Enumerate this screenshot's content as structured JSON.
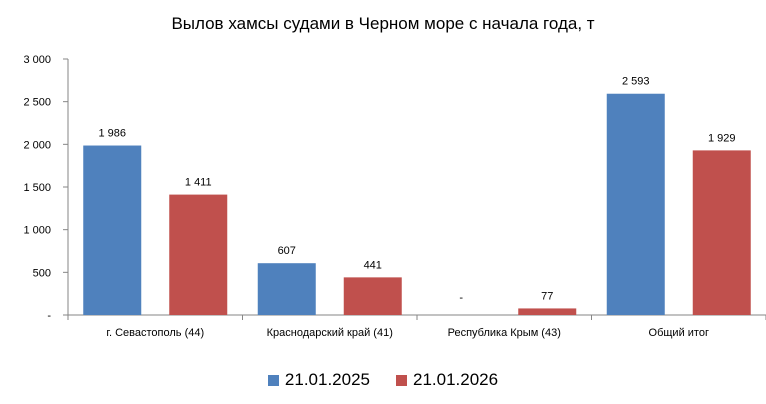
{
  "chart_data": {
    "type": "bar",
    "title": "Вылов хамсы судами в Черном море с начала  года, т",
    "categories": [
      "г. Севастополь (44)",
      "Краснодарский край (41)",
      "Республика Крым (43)",
      "Общий итог"
    ],
    "series": [
      {
        "name": "21.01.2025",
        "color": "#4F81BD",
        "values": [
          1986,
          607,
          null,
          2593
        ],
        "labels": [
          "1 986",
          "607",
          "-",
          "2 593"
        ]
      },
      {
        "name": "21.01.2026",
        "color": "#C0504D",
        "values": [
          1411,
          441,
          77,
          1929
        ],
        "labels": [
          "1 411",
          "441",
          "77",
          "1 929"
        ]
      }
    ],
    "ylim": [
      0,
      3000
    ],
    "yticks": [
      0,
      500,
      1000,
      1500,
      2000,
      2500,
      3000
    ],
    "ytick_labels": [
      "-",
      "500",
      "1 000",
      "1 500",
      "2 000",
      "2 500",
      "3 000"
    ],
    "grid": false,
    "legend_position": "bottom"
  }
}
